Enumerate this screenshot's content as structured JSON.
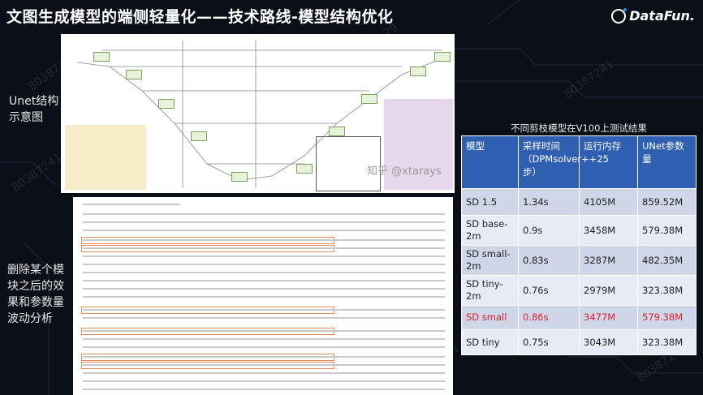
{
  "page": {
    "title": "文图生成模型的端侧轻量化——技术路线-模型结构优化",
    "logo_text": "DataFun.",
    "watermark_date": "2023-11-29",
    "watermark_id": "80387241",
    "side_labels": {
      "unet": "Unet结构示意图",
      "ablation": "删除某个模块之后的效果和参数量波动分析"
    },
    "zhihu_watermark": "知乎 @xtarays"
  },
  "table": {
    "caption": "不同剪枝模型在V100上测试结果",
    "headers": [
      "模型",
      "采样时间（DPMsolver++25步）",
      "运行内存",
      "UNet参数量"
    ],
    "rows": [
      {
        "model": "SD 1.5",
        "time": "1.34s",
        "memory": "4105M",
        "params": "859.52M",
        "highlight": false
      },
      {
        "model": "SD base-2m",
        "time": "0.9s",
        "memory": "3458M",
        "params": "579.38M",
        "highlight": false
      },
      {
        "model": "SD small-2m",
        "time": "0.83s",
        "memory": "3287M",
        "params": "482.35M",
        "highlight": false
      },
      {
        "model": "SD tiny-2m",
        "time": "0.76s",
        "memory": "2979M",
        "params": "323.38M",
        "highlight": false
      },
      {
        "model": "SD small",
        "time": "0.86s",
        "memory": "3477M",
        "params": "579.38M",
        "highlight": true
      },
      {
        "model": "SD tiny",
        "time": "0.75s",
        "memory": "3043M",
        "params": "323.38M",
        "highlight": false
      }
    ]
  },
  "colors": {
    "background": "#0b0f18",
    "header_blue": "#2f5fb0",
    "row_light": "#cfd6e8",
    "row_lighter": "#e7ebf5",
    "highlight_red": "#d9232d"
  }
}
